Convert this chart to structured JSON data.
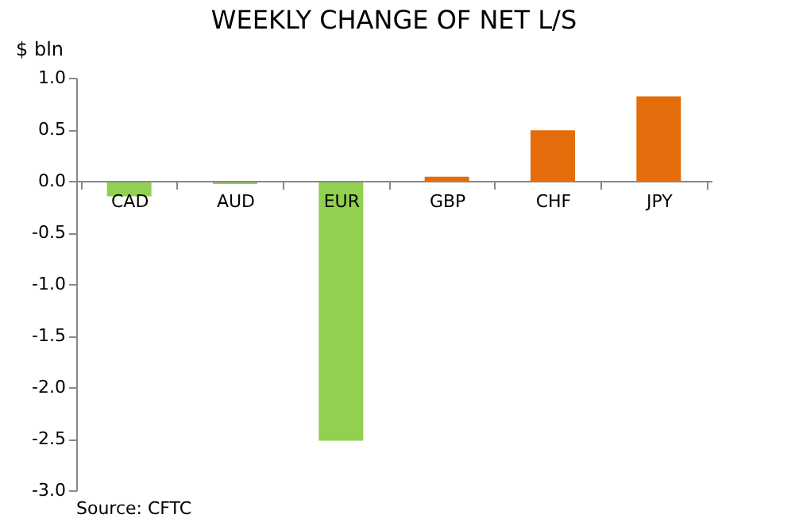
{
  "chart_data": {
    "type": "bar",
    "title": "WEEKLY CHANGE OF NET L/S",
    "ylabel": "$ bln",
    "categories": [
      "CAD",
      "AUD",
      "EUR",
      "GBP",
      "CHF",
      "JPY"
    ],
    "values": [
      -0.15,
      -0.03,
      -2.52,
      0.04,
      0.49,
      0.82
    ],
    "colors": [
      "#92d050",
      "#92d050",
      "#92d050",
      "#e46c0a",
      "#e46c0a",
      "#e46c0a"
    ],
    "ylim": [
      -3.0,
      1.0
    ],
    "yticks": [
      {
        "value": -3.0,
        "label": "-3.0"
      },
      {
        "value": -2.5,
        "label": "-2.5"
      },
      {
        "value": -2.0,
        "label": "-2.0"
      },
      {
        "value": -1.5,
        "label": "-1.5"
      },
      {
        "value": -1.0,
        "label": "-1.0"
      },
      {
        "value": -0.5,
        "label": "-0.5"
      },
      {
        "value": 0.0,
        "label": "0.0"
      },
      {
        "value": 0.5,
        "label": "0.5"
      },
      {
        "value": 1.0,
        "label": "1.0"
      }
    ],
    "grid": false,
    "annotations": [
      "Source: CFTC"
    ]
  }
}
